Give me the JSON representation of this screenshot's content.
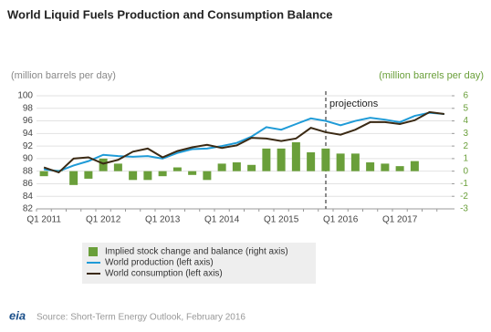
{
  "chart_data": {
    "type": "combo",
    "title": "World Liquid Fuels Production and Consumption Balance",
    "y_label": "(million barrels per day)",
    "y2_label": "(million barrels per day)",
    "annotation": "projections",
    "source": "Source: Short-Term Energy Outlook, February 2016",
    "logo": "eia",
    "categories": [
      "Q1 2011",
      null,
      null,
      null,
      "Q1 2012",
      null,
      null,
      null,
      "Q1 2013",
      null,
      null,
      null,
      "Q1 2014",
      null,
      null,
      null,
      "Q1 2015",
      null,
      null,
      null,
      "Q1 2016",
      null,
      null,
      null,
      "Q1 2017",
      null,
      null,
      null
    ],
    "ylim": [
      82,
      100
    ],
    "yticks": [
      82,
      84,
      86,
      88,
      90,
      92,
      94,
      96,
      98,
      100
    ],
    "y2lim": [
      -3,
      6
    ],
    "y2ticks": [
      -3,
      -2,
      -1,
      0,
      1,
      2,
      3,
      4,
      5,
      6
    ],
    "grid": true,
    "series": [
      {
        "name": "Implied stock change and balance (right axis)",
        "type": "bar",
        "axis": "y2",
        "color": "#6a9f3a",
        "values": [
          -0.4,
          0.1,
          -1.1,
          -0.6,
          1.0,
          0.6,
          -0.7,
          -0.7,
          -0.4,
          0.3,
          -0.3,
          -0.7,
          0.6,
          0.7,
          0.5,
          1.8,
          1.8,
          2.3,
          1.5,
          1.8,
          1.4,
          1.4,
          0.7,
          0.6,
          0.4,
          0.8,
          0,
          0
        ]
      },
      {
        "name": "World production (left axis)",
        "type": "line",
        "color": "#1f9bd7",
        "values": [
          88.3,
          88.0,
          88.9,
          89.6,
          90.6,
          90.4,
          90.3,
          90.4,
          90.0,
          90.9,
          91.5,
          91.6,
          92.0,
          92.5,
          93.5,
          95.0,
          94.6,
          95.5,
          96.4,
          96.0,
          95.3,
          96.0,
          96.5,
          96.2,
          95.8,
          96.8,
          97.3,
          97.1
        ]
      },
      {
        "name": "World consumption (left axis)",
        "type": "line",
        "color": "#3b2a14",
        "values": [
          88.6,
          87.8,
          90.0,
          90.2,
          89.2,
          89.8,
          91.1,
          91.6,
          90.2,
          91.2,
          91.8,
          92.2,
          91.7,
          92.1,
          93.3,
          93.2,
          92.8,
          93.2,
          94.9,
          94.2,
          93.8,
          94.6,
          95.8,
          95.8,
          95.5,
          96.1,
          97.4,
          97.1
        ]
      }
    ]
  }
}
